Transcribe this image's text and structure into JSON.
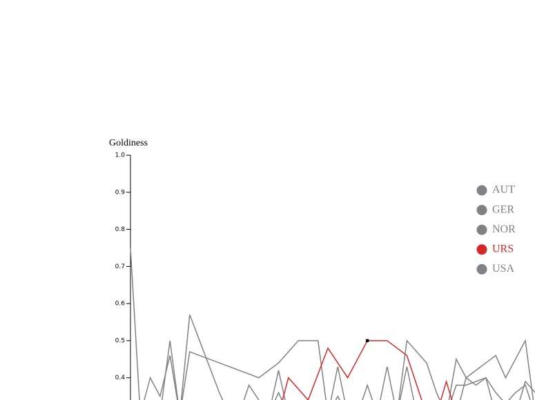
{
  "chart_data": {
    "type": "line",
    "y_label": "Goldiness",
    "ylim": [
      0.34,
      1.0
    ],
    "yticks": [
      {
        "value": 0.4,
        "label": "0.4"
      },
      {
        "value": 0.5,
        "label": "0.5"
      },
      {
        "value": 0.6,
        "label": "0.6"
      },
      {
        "value": 0.7,
        "label": "0.7"
      },
      {
        "value": 0.8,
        "label": "0.8"
      },
      {
        "value": 0.9,
        "label": "0.9"
      },
      {
        "value": 1.0,
        "label": "1.0"
      }
    ],
    "categories": [
      null,
      null,
      null,
      null,
      null,
      null,
      null,
      null,
      null,
      null,
      null,
      null,
      null,
      null,
      null,
      null,
      null,
      null,
      null,
      null,
      null,
      null,
      null,
      null,
      null,
      null,
      null,
      null,
      null,
      null,
      null,
      null,
      null,
      null,
      null,
      null,
      null,
      null,
      null,
      null,
      null,
      null
    ],
    "highlight": {
      "series": 3,
      "index": 24
    },
    "series": [
      {
        "name": "AUT",
        "color": "#808085",
        "values": [
          0.75,
          0.3,
          0.4,
          0.35,
          0.46,
          0.3,
          0.47,
          0.46,
          0.45,
          0.44,
          0.43,
          0.42,
          0.41,
          0.4,
          0.42,
          0.44,
          0.47,
          0.5,
          0.5,
          0.5,
          0.3,
          0.35,
          0.3,
          0.3,
          0.3,
          0.3,
          0.3,
          0.3,
          0.3,
          0.3,
          0.3,
          0.3,
          0.3,
          0.38,
          0.38,
          0.39,
          0.4,
          0.36,
          0.33,
          0.36,
          0.38,
          0.3
        ]
      },
      {
        "name": "GER",
        "color": "#808085",
        "values": [
          0.3,
          0.3,
          0.3,
          0.3,
          0.5,
          0.3,
          0.3,
          0.32,
          0.3,
          0.3,
          0.3,
          0.3,
          0.38,
          0.34,
          0.3,
          0.42,
          0.3,
          0.3,
          0.3,
          0.3,
          0.3,
          0.43,
          0.3,
          0.3,
          0.38,
          0.3,
          0.43,
          0.3,
          0.5,
          0.47,
          0.44,
          0.36,
          0.3,
          0.45,
          0.4,
          0.42,
          0.44,
          0.46,
          0.4,
          0.45,
          0.5,
          0.3
        ]
      },
      {
        "name": "NOR",
        "color": "#808085",
        "values": [
          0.3,
          0.3,
          0.3,
          0.3,
          0.3,
          0.3,
          0.57,
          0.5,
          0.43,
          0.36,
          0.3,
          0.3,
          0.3,
          0.3,
          0.3,
          0.36,
          0.3,
          0.3,
          0.3,
          0.3,
          0.3,
          0.3,
          0.3,
          0.3,
          0.3,
          0.3,
          0.3,
          0.3,
          0.43,
          0.3,
          0.3,
          0.3,
          0.3,
          0.3,
          0.4,
          0.38,
          0.4,
          0.3,
          0.3,
          0.3,
          0.39,
          0.36
        ]
      },
      {
        "name": "URS",
        "color": "#d62728",
        "values": [
          null,
          null,
          null,
          null,
          null,
          null,
          null,
          null,
          null,
          null,
          null,
          null,
          null,
          null,
          null,
          0.3,
          0.4,
          0.37,
          0.34,
          0.41,
          0.48,
          0.44,
          0.4,
          0.45,
          0.5,
          0.5,
          0.5,
          0.48,
          0.46,
          0.38,
          0.3,
          0.3,
          0.39,
          0.3,
          null,
          null,
          null,
          null,
          null,
          null,
          null,
          null
        ]
      },
      {
        "name": "USA",
        "color": "#808085",
        "values": [
          0.3,
          0.3,
          0.3,
          0.3,
          0.3,
          0.3,
          0.3,
          0.3,
          0.3,
          0.3,
          0.3,
          0.3,
          0.3,
          0.3,
          0.3,
          0.3,
          0.3,
          0.3,
          0.3,
          0.3,
          0.3,
          0.3,
          0.3,
          0.3,
          0.3,
          0.3,
          0.3,
          0.3,
          0.3,
          0.3,
          0.3,
          0.3,
          0.3,
          0.3,
          0.3,
          0.3,
          0.3,
          0.3,
          0.3,
          0.3,
          0.3,
          0.3
        ]
      }
    ]
  }
}
